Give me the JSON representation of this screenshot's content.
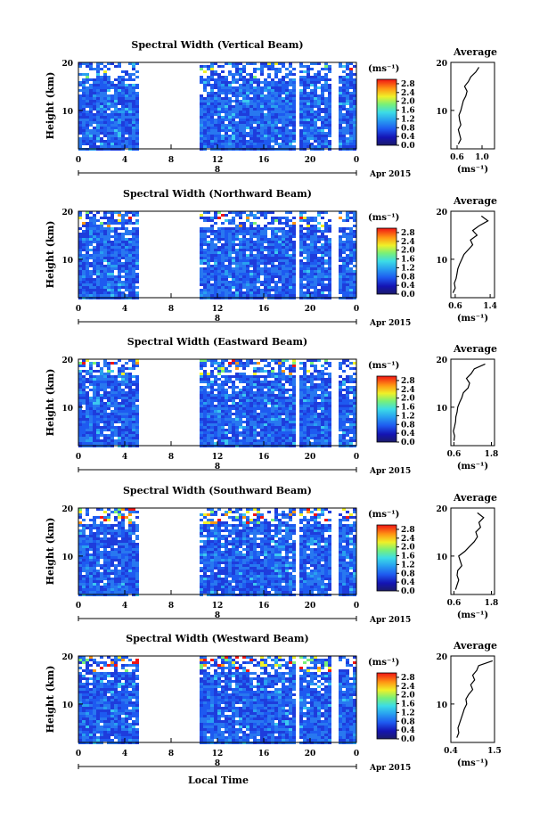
{
  "figure": {
    "xlabel": "Local Time",
    "date_label": "Apr 2015",
    "day_label": "8",
    "ylabel": "Height (km)",
    "colorbar_unit": "(ms⁻¹)",
    "avg_title": "Average",
    "avg_xlabel": "(ms⁻¹)"
  },
  "chart_data": [
    {
      "type": "heatmap",
      "title": "Spectral Width (Vertical Beam)",
      "x_ticks": [
        "0",
        "4",
        "8",
        "12",
        "16",
        "20",
        "0"
      ],
      "y_ticks": [
        "10",
        "20"
      ],
      "colorbar_ticks": [
        "0.0",
        "0.4",
        "0.8",
        "1.2",
        "1.6",
        "2.0",
        "2.4",
        "2.8"
      ],
      "xlim": [
        0,
        24
      ],
      "ylim": [
        2,
        20
      ],
      "clim": [
        0,
        3.0
      ],
      "data_gaps_hours": [
        [
          5.2,
          10.3
        ],
        [
          18.6,
          19.0
        ],
        [
          21.8,
          22.2
        ]
      ],
      "average_profile": {
        "x_ticks": [
          "0.6",
          "1.0"
        ],
        "xlim": [
          0.5,
          1.2
        ],
        "heights_km": [
          3,
          4,
          5,
          6,
          7,
          8,
          9,
          10,
          11,
          12,
          13,
          14,
          15,
          16,
          17,
          18,
          19
        ],
        "values": [
          0.62,
          0.66,
          0.64,
          0.62,
          0.66,
          0.64,
          0.63,
          0.66,
          0.68,
          0.7,
          0.74,
          0.76,
          0.72,
          0.78,
          0.82,
          0.9,
          0.95
        ]
      }
    },
    {
      "type": "heatmap",
      "title": "Spectral Width (Northward Beam)",
      "x_ticks": [
        "0",
        "4",
        "8",
        "12",
        "16",
        "20",
        "0"
      ],
      "y_ticks": [
        "10",
        "20"
      ],
      "colorbar_ticks": [
        "0.0",
        "0.4",
        "0.8",
        "1.2",
        "1.6",
        "2.0",
        "2.4",
        "2.8"
      ],
      "xlim": [
        0,
        24
      ],
      "ylim": [
        2,
        20
      ],
      "clim": [
        0,
        3.0
      ],
      "data_gaps_hours": [
        [
          5.2,
          10.3
        ],
        [
          18.6,
          19.0
        ],
        [
          21.8,
          22.2
        ]
      ],
      "average_profile": {
        "x_ticks": [
          "0.6",
          "1.4"
        ],
        "xlim": [
          0.5,
          1.5
        ],
        "heights_km": [
          3,
          4,
          5,
          6,
          7,
          8,
          9,
          10,
          11,
          12,
          13,
          14,
          15,
          16,
          17,
          18,
          19
        ],
        "values": [
          0.55,
          0.6,
          0.58,
          0.62,
          0.64,
          0.66,
          0.7,
          0.75,
          0.8,
          0.9,
          1.0,
          0.95,
          1.1,
          1.0,
          1.15,
          1.35,
          1.2
        ]
      }
    },
    {
      "type": "heatmap",
      "title": "Spectral Width (Eastward Beam)",
      "x_ticks": [
        "0",
        "4",
        "8",
        "12",
        "16",
        "20",
        "0"
      ],
      "y_ticks": [
        "10",
        "20"
      ],
      "colorbar_ticks": [
        "0.0",
        "0.4",
        "0.8",
        "1.2",
        "1.6",
        "2.0",
        "2.4",
        "2.8"
      ],
      "xlim": [
        0,
        24
      ],
      "ylim": [
        2,
        20
      ],
      "clim": [
        0,
        3.0
      ],
      "data_gaps_hours": [
        [
          5.2,
          10.3
        ],
        [
          18.6,
          19.0
        ],
        [
          21.8,
          22.2
        ]
      ],
      "average_profile": {
        "x_ticks": [
          "0.6",
          "1.8"
        ],
        "xlim": [
          0.5,
          1.9
        ],
        "heights_km": [
          3,
          4,
          5,
          6,
          7,
          8,
          9,
          10,
          11,
          12,
          13,
          14,
          15,
          16,
          17,
          18,
          19
        ],
        "values": [
          0.6,
          0.62,
          0.58,
          0.62,
          0.65,
          0.66,
          0.7,
          0.72,
          0.78,
          0.85,
          0.9,
          1.05,
          1.1,
          1.0,
          1.15,
          1.25,
          1.6
        ]
      }
    },
    {
      "type": "heatmap",
      "title": "Spectral Width (Southward Beam)",
      "x_ticks": [
        "0",
        "4",
        "8",
        "12",
        "16",
        "20",
        "0"
      ],
      "y_ticks": [
        "10",
        "20"
      ],
      "colorbar_ticks": [
        "0.0",
        "0.4",
        "0.8",
        "1.2",
        "1.6",
        "2.0",
        "2.4",
        "2.8"
      ],
      "xlim": [
        0,
        24
      ],
      "ylim": [
        2,
        20
      ],
      "clim": [
        0,
        3.0
      ],
      "data_gaps_hours": [
        [
          5.2,
          10.3
        ],
        [
          18.6,
          19.0
        ],
        [
          21.8,
          22.2
        ]
      ],
      "average_profile": {
        "x_ticks": [
          "0.6",
          "1.8"
        ],
        "xlim": [
          0.5,
          1.9
        ],
        "heights_km": [
          3,
          4,
          5,
          6,
          7,
          8,
          9,
          10,
          11,
          12,
          13,
          14,
          15,
          16,
          17,
          18,
          19
        ],
        "values": [
          0.65,
          0.7,
          0.75,
          0.7,
          0.72,
          0.85,
          0.8,
          0.75,
          0.95,
          1.1,
          1.25,
          1.35,
          1.3,
          1.45,
          1.4,
          1.55,
          1.35
        ]
      }
    },
    {
      "type": "heatmap",
      "title": "Spectral Width (Westward Beam)",
      "x_ticks": [
        "0",
        "4",
        "8",
        "12",
        "16",
        "20",
        "0"
      ],
      "y_ticks": [
        "10",
        "20"
      ],
      "colorbar_ticks": [
        "0.0",
        "0.4",
        "0.8",
        "1.2",
        "1.6",
        "2.0",
        "2.4",
        "2.8"
      ],
      "xlim": [
        0,
        24
      ],
      "ylim": [
        2,
        20
      ],
      "clim": [
        0,
        3.0
      ],
      "data_gaps_hours": [
        [
          5.2,
          10.3
        ],
        [
          18.6,
          19.0
        ],
        [
          21.8,
          22.2
        ]
      ],
      "average_profile": {
        "x_ticks": [
          "0.4",
          "1.5"
        ],
        "xlim": [
          0.4,
          1.5
        ],
        "heights_km": [
          3,
          4,
          5,
          6,
          7,
          8,
          9,
          10,
          11,
          12,
          13,
          14,
          15,
          16,
          17,
          18,
          19
        ],
        "values": [
          0.55,
          0.6,
          0.58,
          0.62,
          0.66,
          0.7,
          0.74,
          0.8,
          0.78,
          0.85,
          0.95,
          0.9,
          1.0,
          0.95,
          1.05,
          1.1,
          1.45
        ]
      }
    }
  ]
}
